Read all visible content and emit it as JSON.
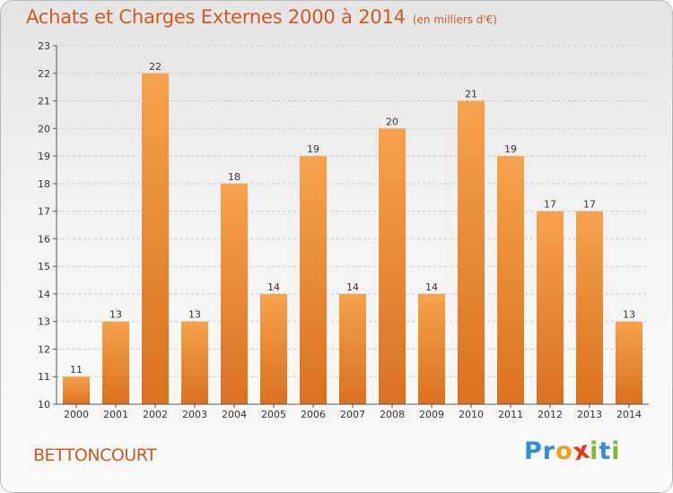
{
  "title": "Achats et Charges Externes 2000 à 2014",
  "subtitle": "(en milliers d'€)",
  "city": "BETTONCOURT",
  "logo": {
    "text": "Proxiti",
    "letter_colors": [
      "#2f8fd8",
      "#2f8fd8",
      "#f0a020",
      "#e23a1a",
      "#7dbb2a",
      "#2f8fd8",
      "#7dbb2a"
    ]
  },
  "colors": {
    "bar_light": "#f6a24c",
    "bar_dark": "#d9711e",
    "accent": "#cc5a1e",
    "axis": "#555555",
    "grid": "#c8c8c8"
  },
  "chart_data": {
    "type": "bar",
    "title": "Achats et Charges Externes 2000 à 2014",
    "subtitle": "(en milliers d'€)",
    "categories": [
      "2000",
      "2001",
      "2002",
      "2003",
      "2004",
      "2005",
      "2006",
      "2007",
      "2008",
      "2009",
      "2010",
      "2011",
      "2012",
      "2013",
      "2014"
    ],
    "values": [
      11,
      13,
      22,
      13,
      18,
      14,
      19,
      14,
      20,
      14,
      21,
      19,
      17,
      17,
      13
    ],
    "ylim": [
      10,
      23
    ],
    "yticks": [
      10,
      11,
      12,
      13,
      14,
      15,
      16,
      17,
      18,
      19,
      20,
      21,
      22,
      23
    ],
    "grid": true,
    "legend": "none"
  }
}
